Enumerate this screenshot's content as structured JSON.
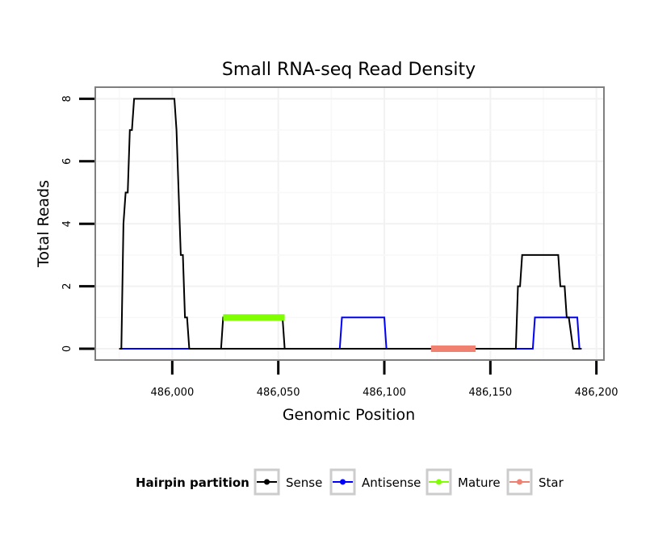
{
  "chart_data": {
    "type": "line",
    "title": "Small RNA-seq Read Density",
    "xlabel": "Genomic Position",
    "ylabel": "Total Reads",
    "xlim": [
      485975,
      486200
    ],
    "ylim": [
      0,
      8
    ],
    "x_ticks": [
      486000,
      486050,
      486100,
      486150,
      486200
    ],
    "x_tick_labels": [
      "486,000",
      "486,050",
      "486,100",
      "486,150",
      "486,200"
    ],
    "y_ticks": [
      0,
      2,
      4,
      6,
      8
    ],
    "y_tick_labels": [
      "0",
      "2",
      "4",
      "6",
      "8"
    ],
    "grid": true,
    "legend": {
      "title": "Hairpin partition",
      "position": "bottom",
      "entries": [
        {
          "name": "Sense",
          "color": "#000000"
        },
        {
          "name": "Antisense",
          "color": "#0000ff"
        },
        {
          "name": "Mature",
          "color": "#7fff00"
        },
        {
          "name": "Star",
          "color": "#f08070"
        }
      ]
    },
    "series": [
      {
        "name": "Sense",
        "color": "#000000",
        "points": [
          [
            485975,
            0
          ],
          [
            485976,
            0
          ],
          [
            485977,
            4
          ],
          [
            485978,
            5
          ],
          [
            485979,
            5
          ],
          [
            485980,
            7
          ],
          [
            485981,
            7
          ],
          [
            485982,
            8
          ],
          [
            486001,
            8
          ],
          [
            486002,
            7
          ],
          [
            486004,
            3
          ],
          [
            486005,
            3
          ],
          [
            486006,
            1
          ],
          [
            486007,
            1
          ],
          [
            486008,
            0
          ],
          [
            486162,
            0
          ],
          [
            486163,
            2
          ],
          [
            486164,
            2
          ],
          [
            486165,
            3
          ],
          [
            486182,
            3
          ],
          [
            486183,
            2
          ],
          [
            486185,
            2
          ],
          [
            486186,
            1
          ],
          [
            486187,
            1
          ],
          [
            486189,
            0
          ],
          [
            486193,
            0
          ]
        ]
      },
      {
        "name": "Antisense",
        "color": "#0000ff",
        "points": [
          [
            485975,
            0
          ],
          [
            486079,
            0
          ],
          [
            486080,
            1
          ],
          [
            486100,
            1
          ],
          [
            486101,
            0
          ],
          [
            486170,
            0
          ],
          [
            486171,
            1
          ],
          [
            486191,
            1
          ],
          [
            486192,
            0
          ],
          [
            486193,
            0
          ]
        ]
      },
      {
        "name": "Mature",
        "color": "#7fff00",
        "segment": [
          486024,
          486053
        ],
        "level": 1
      },
      {
        "name": "Star",
        "color": "#f08070",
        "segment": [
          486122,
          486143
        ],
        "level": 0
      }
    ],
    "overlay_lines": [
      {
        "color": "#000000",
        "points": [
          [
            486023,
            0
          ],
          [
            486024,
            1
          ],
          [
            486052,
            1
          ],
          [
            486053,
            0
          ]
        ]
      }
    ]
  }
}
